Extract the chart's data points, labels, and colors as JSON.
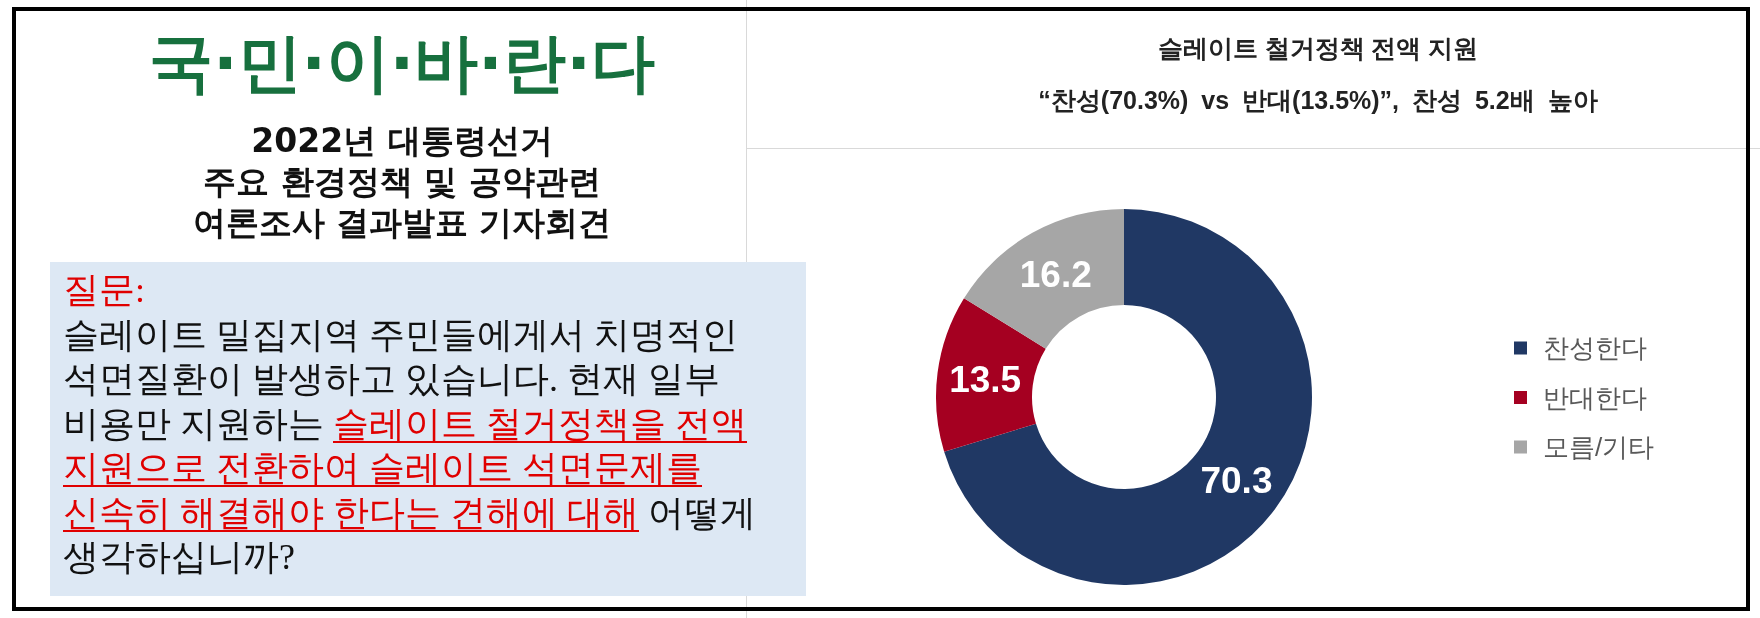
{
  "chart_data": [
    {
      "type": "other",
      "title": "국·민·이·바·란·다",
      "subtitle": "2022년 대통령선거\n주요 환경정책 및 공약관련\n여론조사 결과발표 기자회견",
      "annotations": [
        "질문:",
        "슬레이트 밀집지역 주민들에게서 치명적인\n석면질환이 발생하고 있습니다. 현재 일부",
        "비용만 지원하는",
        "슬레이트 철거정책을 전액",
        "지원으로 전환하여 슬레이트 석면문제를",
        "신속히 해결해야 한다는 견해에 대해",
        "어떻게",
        "생각하십니까?"
      ]
    },
    {
      "type": "donut",
      "title": "슬레이트 철거정책 전액 지원",
      "subtitle": "“찬성(70.3%) vs 반대(13.5%)”, 찬성 5.2배 높아",
      "categories": [
        "찬성한다",
        "반대한다",
        "모름/기타"
      ],
      "values": [
        70.3,
        13.5,
        16.2
      ],
      "colors": [
        "#203864",
        "#a50021",
        "#a6a6a6"
      ],
      "data_labels": true,
      "legend": "right"
    }
  ]
}
